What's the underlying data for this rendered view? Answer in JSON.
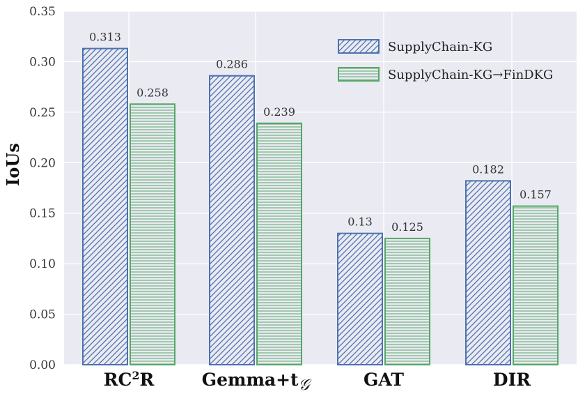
{
  "chart_data": {
    "type": "bar",
    "ylabel": "IoUs",
    "ylim": [
      0,
      0.35
    ],
    "yticks": [
      "0.00",
      "0.05",
      "0.10",
      "0.15",
      "0.20",
      "0.25",
      "0.30",
      "0.35"
    ],
    "grid": true,
    "legend_position": "top-right",
    "categories": [
      {
        "text": "RC",
        "sup": "2",
        "tail": "R"
      },
      {
        "text": "Gemma+t",
        "sub": "𝒢"
      },
      {
        "text": "GAT"
      },
      {
        "text": "DIR"
      }
    ],
    "series": [
      {
        "name": "SupplyChain-KG",
        "values": [
          0.313,
          0.286,
          0.13,
          0.182
        ],
        "labels": [
          "0.313",
          "0.286",
          "0.13",
          "0.182"
        ],
        "color": "#4c72b0",
        "pattern": "diagonal-hatch"
      },
      {
        "name": "SupplyChain-KG→FinDKG",
        "values": [
          0.258,
          0.239,
          0.125,
          0.157
        ],
        "labels": [
          "0.258",
          "0.239",
          "0.125",
          "0.157"
        ],
        "color": "#55a868",
        "pattern": "horizontal-hatch"
      }
    ],
    "background": "#eaeaf2"
  }
}
